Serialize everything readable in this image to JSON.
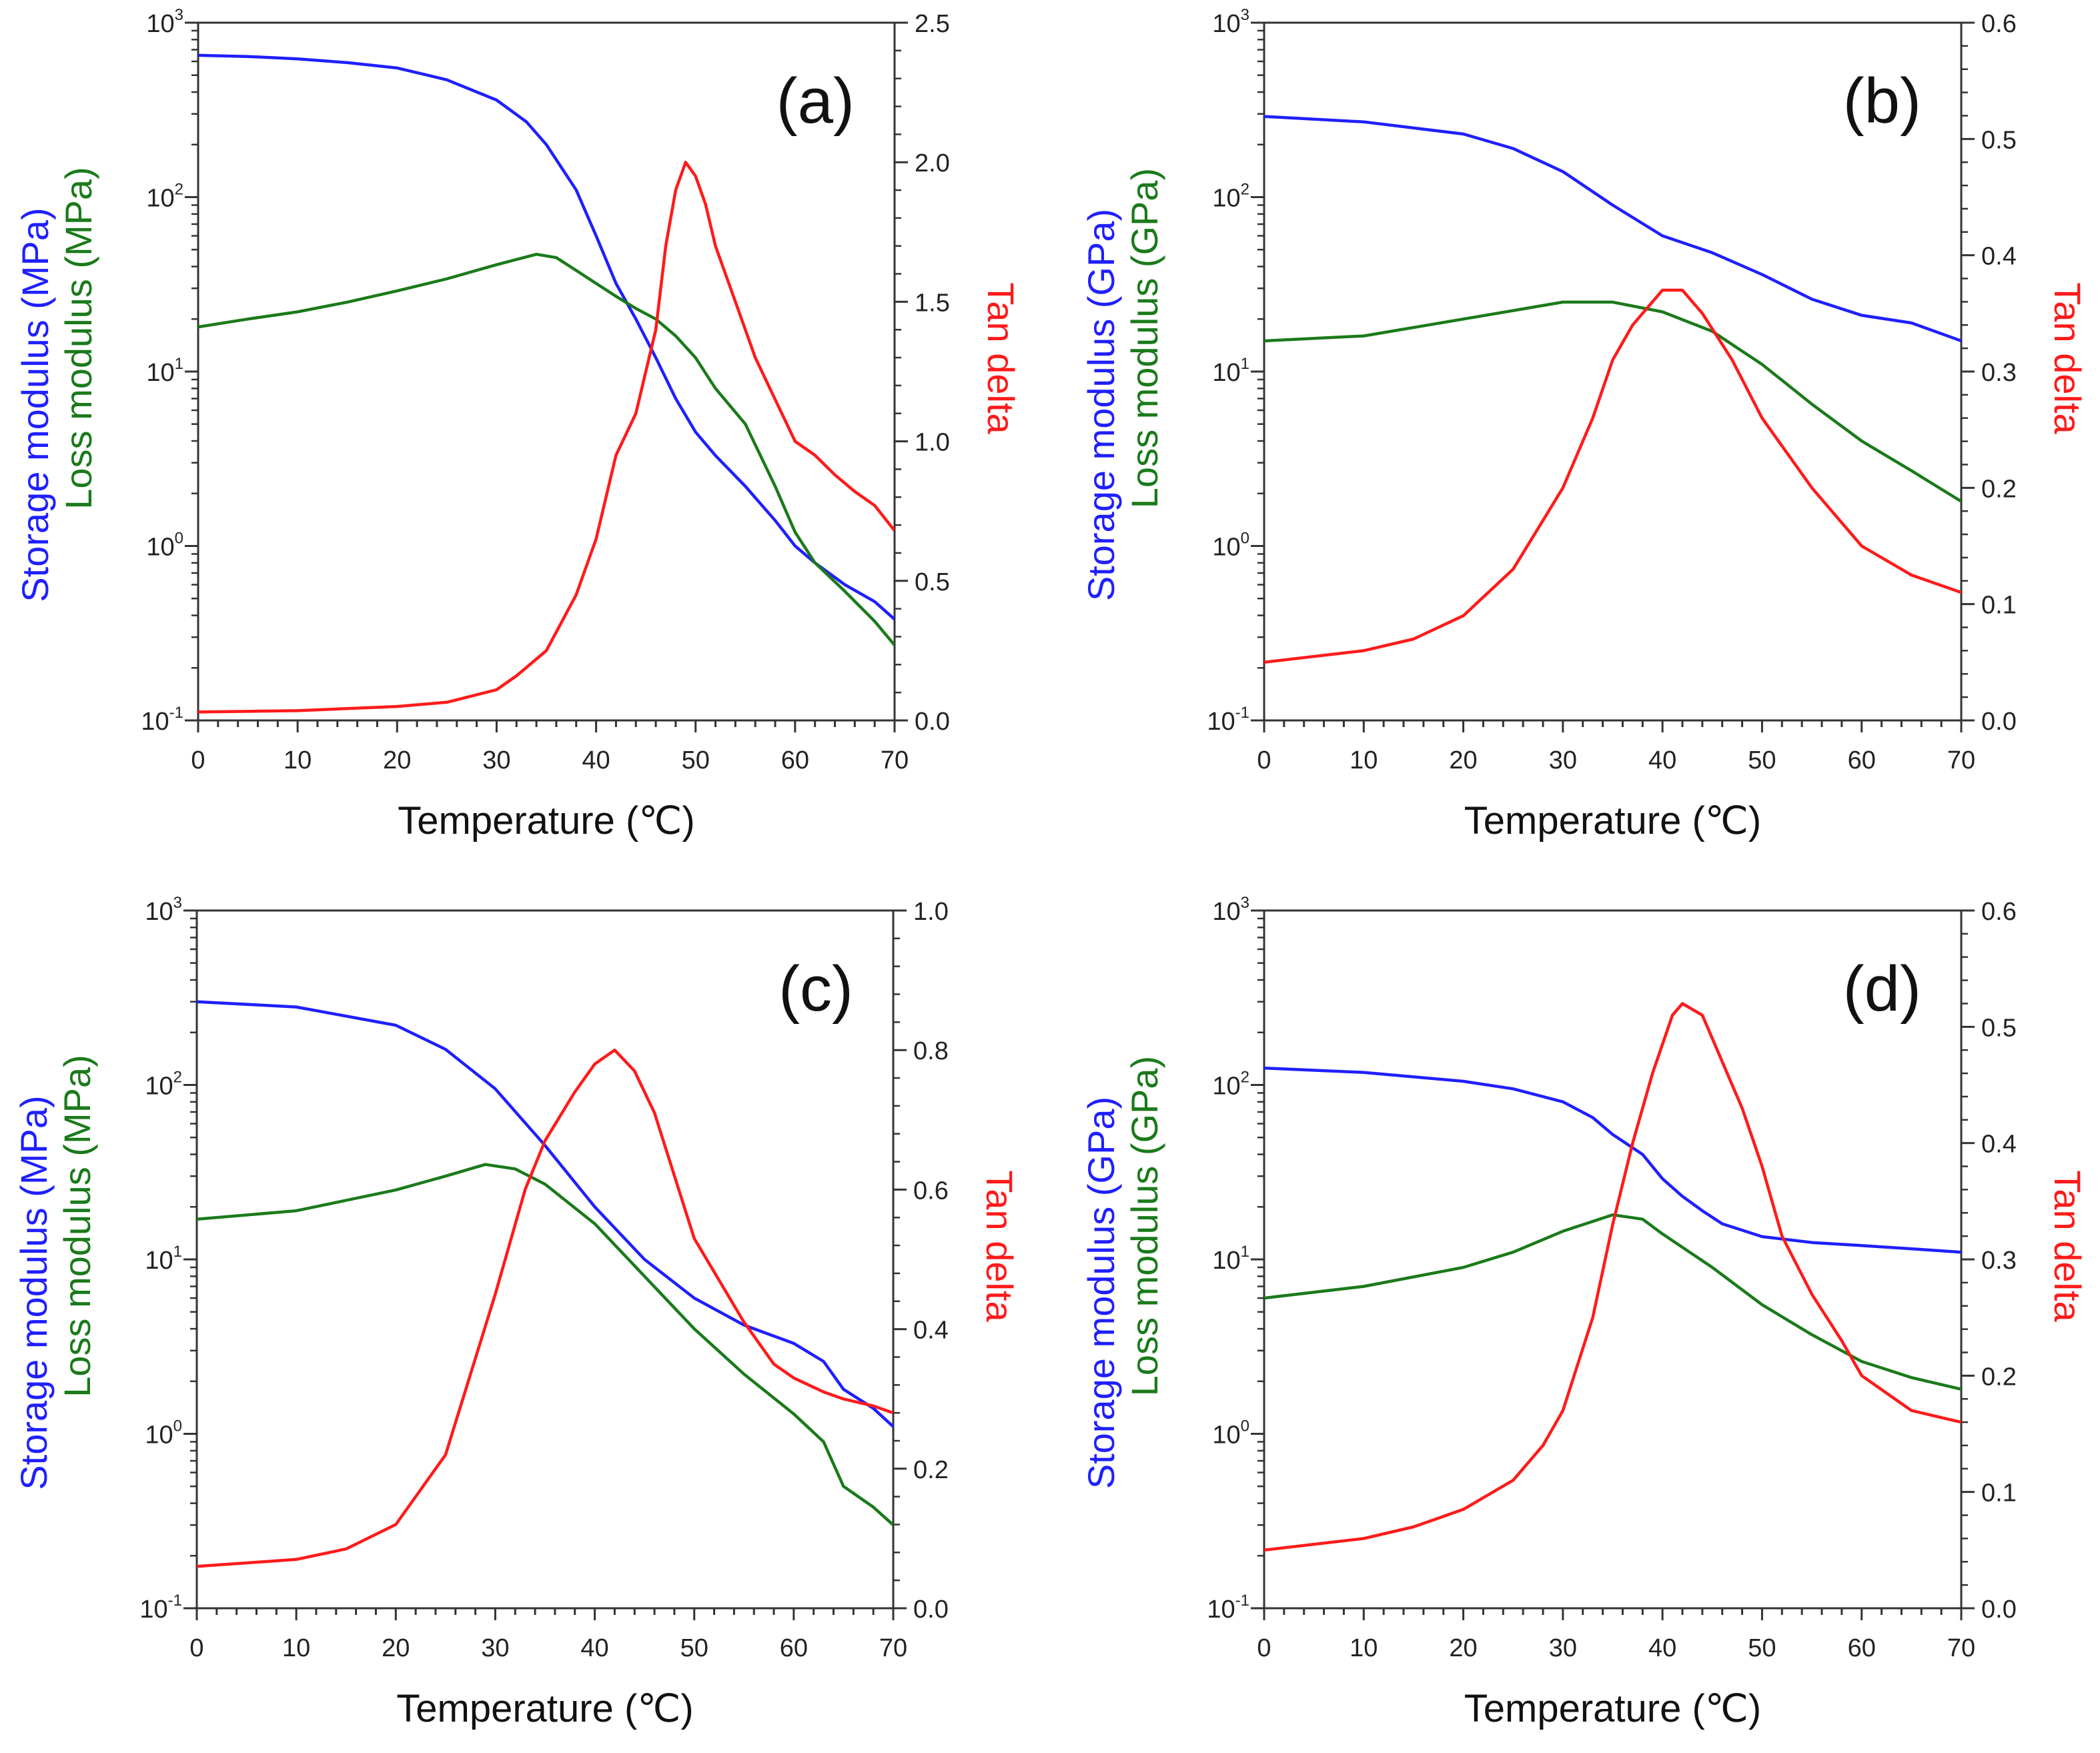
{
  "colors": {
    "storage": "#1f1fff",
    "loss": "#1a7a1a",
    "tan": "#ff1a1a",
    "axis": "#333333"
  },
  "chart_data": [
    {
      "type": "line",
      "panel_label": "(a)",
      "xlabel": "Temperature (℃)",
      "xlim": [
        0,
        70
      ],
      "xticks": [
        0,
        10,
        20,
        30,
        40,
        50,
        60,
        70
      ],
      "ylabel_storage": "Storage modulus (MPa)",
      "ylabel_loss": "Loss modulus (MPa)",
      "ylim_left": [
        0.1,
        1000
      ],
      "yscale_left": "log",
      "ylabel_right": "Tan delta",
      "ylim_right": [
        0,
        2.5
      ],
      "yticks_right": [
        "0.0",
        "0.5",
        "1.0",
        "1.5",
        "2.0",
        "2.5"
      ],
      "series": [
        {
          "name": "Storage modulus",
          "axis": "left",
          "color_key": "storage",
          "x": [
            0,
            5,
            10,
            15,
            20,
            25,
            30,
            33,
            35,
            38,
            40,
            42,
            44,
            46,
            48,
            50,
            52,
            55,
            58,
            60,
            62,
            65,
            68,
            70
          ],
          "y": [
            650,
            640,
            620,
            590,
            550,
            470,
            360,
            270,
            200,
            110,
            60,
            32,
            20,
            12,
            7,
            4.5,
            3.3,
            2.2,
            1.4,
            1.0,
            0.8,
            0.6,
            0.48,
            0.38
          ]
        },
        {
          "name": "Loss modulus",
          "axis": "left",
          "color_key": "loss",
          "x": [
            0,
            5,
            10,
            15,
            20,
            25,
            30,
            34,
            36,
            38,
            40,
            42,
            44,
            46,
            48,
            50,
            52,
            55,
            58,
            60,
            62,
            65,
            68,
            70
          ],
          "y": [
            18,
            20,
            22,
            25,
            29,
            34,
            41,
            47,
            45,
            38,
            32,
            27,
            23,
            20,
            16,
            12,
            8,
            5,
            2.2,
            1.2,
            0.8,
            0.55,
            0.37,
            0.27
          ]
        },
        {
          "name": "Tan delta",
          "axis": "right",
          "color_key": "tan",
          "x": [
            0,
            10,
            20,
            25,
            30,
            32,
            35,
            38,
            40,
            42,
            44,
            45,
            46,
            47,
            48,
            49,
            50,
            51,
            52,
            54,
            56,
            58,
            60,
            62,
            64,
            66,
            68,
            70
          ],
          "y": [
            0.03,
            0.035,
            0.05,
            0.065,
            0.11,
            0.16,
            0.25,
            0.45,
            0.65,
            0.95,
            1.1,
            1.25,
            1.4,
            1.7,
            1.9,
            2.0,
            1.95,
            1.85,
            1.7,
            1.5,
            1.3,
            1.15,
            1.0,
            0.95,
            0.88,
            0.82,
            0.77,
            0.68
          ]
        }
      ]
    },
    {
      "type": "line",
      "panel_label": "(b)",
      "xlabel": "Temperature (℃)",
      "xlim": [
        0,
        70
      ],
      "xticks": [
        0,
        10,
        20,
        30,
        40,
        50,
        60,
        70
      ],
      "ylabel_storage": "Storage modulus (GPa)",
      "ylabel_loss": "Loss modulus (GPa)",
      "ylim_left": [
        0.1,
        1000
      ],
      "yscale_left": "log",
      "ylabel_right": "Tan delta",
      "ylim_right": [
        0,
        0.6
      ],
      "yticks_right": [
        "0.0",
        "0.1",
        "0.2",
        "0.3",
        "0.4",
        "0.5",
        "0.6"
      ],
      "series": [
        {
          "name": "Storage modulus",
          "axis": "left",
          "color_key": "storage",
          "x": [
            0,
            10,
            20,
            25,
            30,
            35,
            40,
            45,
            50,
            55,
            60,
            65,
            70
          ],
          "y": [
            290,
            270,
            230,
            190,
            140,
            90,
            60,
            48,
            36,
            26,
            21,
            19,
            15
          ]
        },
        {
          "name": "Loss modulus",
          "axis": "left",
          "color_key": "loss",
          "x": [
            0,
            10,
            20,
            30,
            35,
            40,
            45,
            50,
            55,
            60,
            65,
            70
          ],
          "y": [
            15,
            16,
            20,
            25,
            25,
            22,
            17,
            11,
            6.5,
            4,
            2.7,
            1.8
          ]
        },
        {
          "name": "Tan delta",
          "axis": "right",
          "color_key": "tan",
          "x": [
            0,
            10,
            15,
            20,
            25,
            30,
            33,
            35,
            37,
            40,
            42,
            44,
            47,
            50,
            55,
            60,
            65,
            70
          ],
          "y": [
            0.05,
            0.06,
            0.07,
            0.09,
            0.13,
            0.2,
            0.26,
            0.31,
            0.34,
            0.37,
            0.37,
            0.35,
            0.31,
            0.26,
            0.2,
            0.15,
            0.125,
            0.11
          ]
        }
      ]
    },
    {
      "type": "line",
      "panel_label": "(c)",
      "xlabel": "Temperature (℃)",
      "xlim": [
        0,
        70
      ],
      "xticks": [
        0,
        10,
        20,
        30,
        40,
        50,
        60,
        70
      ],
      "ylabel_storage": "Storage modulus (MPa)",
      "ylabel_loss": "Loss modulus (MPa)",
      "ylim_left": [
        0.1,
        1000
      ],
      "yscale_left": "log",
      "ylabel_right": "Tan delta",
      "ylim_right": [
        0,
        1.0
      ],
      "yticks_right": [
        "0.0",
        "0.2",
        "0.4",
        "0.6",
        "0.8",
        "1.0"
      ],
      "series": [
        {
          "name": "Storage modulus",
          "axis": "left",
          "color_key": "storage",
          "x": [
            0,
            10,
            20,
            25,
            30,
            35,
            40,
            45,
            50,
            55,
            60,
            63,
            65,
            68,
            70
          ],
          "y": [
            300,
            280,
            220,
            160,
            95,
            45,
            20,
            10,
            6,
            4.2,
            3.3,
            2.6,
            1.8,
            1.4,
            1.1
          ]
        },
        {
          "name": "Loss modulus",
          "axis": "left",
          "color_key": "loss",
          "x": [
            0,
            10,
            20,
            25,
            29,
            32,
            35,
            40,
            45,
            50,
            55,
            60,
            63,
            65,
            68,
            70
          ],
          "y": [
            17,
            19,
            25,
            30,
            35,
            33,
            27,
            16,
            8,
            4,
            2.2,
            1.3,
            0.9,
            0.5,
            0.38,
            0.3
          ]
        },
        {
          "name": "Tan delta",
          "axis": "right",
          "color_key": "tan",
          "x": [
            0,
            10,
            15,
            20,
            25,
            30,
            33,
            35,
            38,
            40,
            42,
            44,
            46,
            48,
            50,
            55,
            58,
            60,
            63,
            65,
            68,
            70
          ],
          "y": [
            0.06,
            0.07,
            0.085,
            0.12,
            0.22,
            0.45,
            0.6,
            0.67,
            0.74,
            0.78,
            0.8,
            0.77,
            0.71,
            0.62,
            0.53,
            0.41,
            0.35,
            0.33,
            0.31,
            0.3,
            0.29,
            0.28
          ]
        }
      ]
    },
    {
      "type": "line",
      "panel_label": "(d)",
      "xlabel": "Temperature (℃)",
      "xlim": [
        0,
        70
      ],
      "xticks": [
        0,
        10,
        20,
        30,
        40,
        50,
        60,
        70
      ],
      "ylabel_storage": "Storage modulus (GPa)",
      "ylabel_loss": "Loss modulus (GPa)",
      "ylim_left": [
        0.1,
        1000
      ],
      "yscale_left": "log",
      "ylabel_right": "Tan delta",
      "ylim_right": [
        0,
        0.6
      ],
      "yticks_right": [
        "0.0",
        "0.1",
        "0.2",
        "0.3",
        "0.4",
        "0.5",
        "0.6"
      ],
      "series": [
        {
          "name": "Storage modulus",
          "axis": "left",
          "color_key": "storage",
          "x": [
            0,
            10,
            20,
            25,
            30,
            33,
            35,
            38,
            40,
            42,
            44,
            46,
            50,
            55,
            60,
            65,
            70
          ],
          "y": [
            125,
            118,
            105,
            95,
            80,
            65,
            52,
            40,
            29,
            23,
            19,
            16,
            13.5,
            12.5,
            12,
            11.5,
            11
          ]
        },
        {
          "name": "Loss modulus",
          "axis": "left",
          "color_key": "loss",
          "x": [
            0,
            10,
            20,
            25,
            30,
            35,
            38,
            40,
            45,
            50,
            55,
            60,
            65,
            70
          ],
          "y": [
            6,
            7,
            9,
            11,
            14.5,
            18,
            17,
            14,
            9,
            5.5,
            3.7,
            2.6,
            2.1,
            1.8
          ]
        },
        {
          "name": "Tan delta",
          "axis": "right",
          "color_key": "tan",
          "x": [
            0,
            10,
            15,
            20,
            25,
            28,
            30,
            33,
            35,
            37,
            39,
            41,
            42,
            44,
            46,
            48,
            50,
            52,
            55,
            58,
            60,
            65,
            70
          ],
          "y": [
            0.05,
            0.06,
            0.07,
            0.085,
            0.11,
            0.14,
            0.17,
            0.25,
            0.33,
            0.4,
            0.46,
            0.51,
            0.52,
            0.51,
            0.47,
            0.43,
            0.38,
            0.32,
            0.27,
            0.23,
            0.2,
            0.17,
            0.16
          ]
        }
      ]
    }
  ]
}
